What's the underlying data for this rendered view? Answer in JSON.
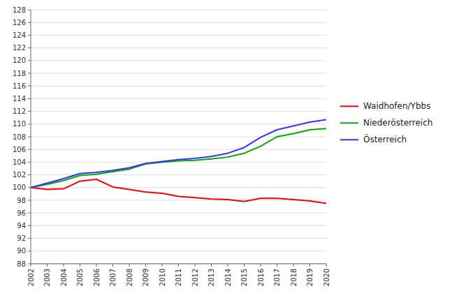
{
  "chart_data": {
    "type": "line",
    "x": [
      2002,
      2003,
      2004,
      2005,
      2006,
      2007,
      2008,
      2009,
      2010,
      2011,
      2012,
      2013,
      2014,
      2015,
      2016,
      2017,
      2018,
      2019,
      2020
    ],
    "series": [
      {
        "name": "Waidhofen/Ybbs",
        "color": "#ff0000",
        "values": [
          100.0,
          99.7,
          99.8,
          101.0,
          101.3,
          100.1,
          99.7,
          99.3,
          99.1,
          98.6,
          98.4,
          98.2,
          98.1,
          97.8,
          98.3,
          98.3,
          98.1,
          97.9,
          97.5
        ]
      },
      {
        "name": "Niederösterreich",
        "color": "#00aa00",
        "values": [
          100.0,
          100.5,
          101.1,
          101.9,
          102.1,
          102.5,
          102.9,
          103.7,
          104.0,
          104.2,
          104.3,
          104.5,
          104.8,
          105.4,
          106.5,
          108.0,
          108.5,
          109.1,
          109.3
        ]
      },
      {
        "name": "Österreich",
        "color": "#3333ff",
        "values": [
          100.0,
          100.7,
          101.4,
          102.2,
          102.4,
          102.7,
          103.1,
          103.8,
          104.1,
          104.4,
          104.6,
          104.9,
          105.4,
          106.3,
          107.9,
          109.1,
          109.7,
          110.3,
          110.7
        ]
      }
    ],
    "xlim": [
      2002,
      2020
    ],
    "xticks": [
      2002,
      2003,
      2004,
      2005,
      2006,
      2007,
      2008,
      2009,
      2010,
      2011,
      2012,
      2013,
      2014,
      2015,
      2016,
      2017,
      2018,
      2019,
      2020
    ],
    "ylim": [
      88,
      128
    ],
    "yticks": [
      88,
      90,
      92,
      94,
      96,
      98,
      100,
      102,
      104,
      106,
      108,
      110,
      112,
      114,
      116,
      118,
      120,
      122,
      124,
      126,
      128
    ],
    "grid": true,
    "legend": "right"
  }
}
